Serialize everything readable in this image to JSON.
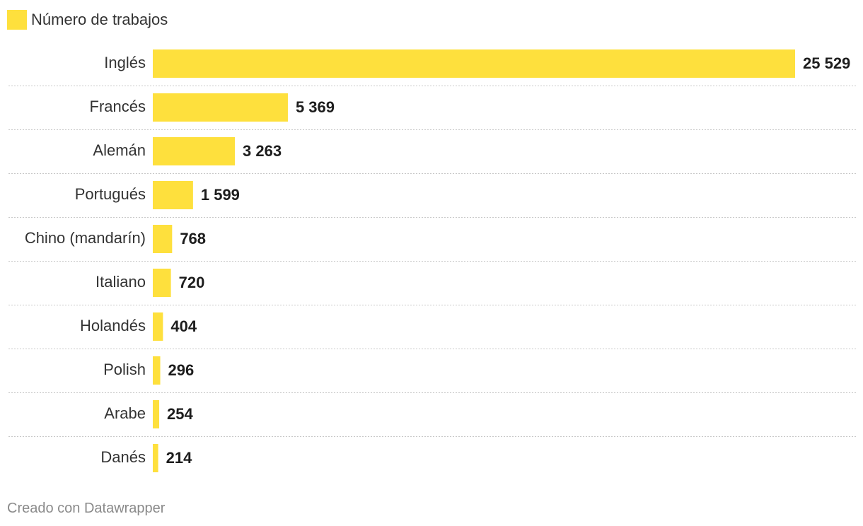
{
  "legend": {
    "label": "Número de trabajos",
    "color": "#fee03d"
  },
  "chart_data": {
    "type": "bar",
    "orientation": "horizontal",
    "title": "",
    "categories": [
      "Inglés",
      "Francés",
      "Alemán",
      "Portugués",
      "Chino (mandarín)",
      "Italiano",
      "Holandés",
      "Polish",
      "Arabe",
      "Danés"
    ],
    "values": [
      25529,
      5369,
      3263,
      1599,
      768,
      720,
      404,
      296,
      254,
      214
    ],
    "value_labels": [
      "25 529",
      "5 369",
      "3 263",
      "1 599",
      "768",
      "720",
      "404",
      "296",
      "254",
      "214"
    ],
    "series": [
      {
        "name": "Número de trabajos",
        "color": "#fee03d",
        "values": [
          25529,
          5369,
          3263,
          1599,
          768,
          720,
          404,
          296,
          254,
          214
        ]
      }
    ],
    "xlim": [
      0,
      25529
    ],
    "xlabel": "",
    "ylabel": "",
    "grid": false,
    "legend_position": "top-left"
  },
  "footer": {
    "credit": "Creado con Datawrapper"
  }
}
